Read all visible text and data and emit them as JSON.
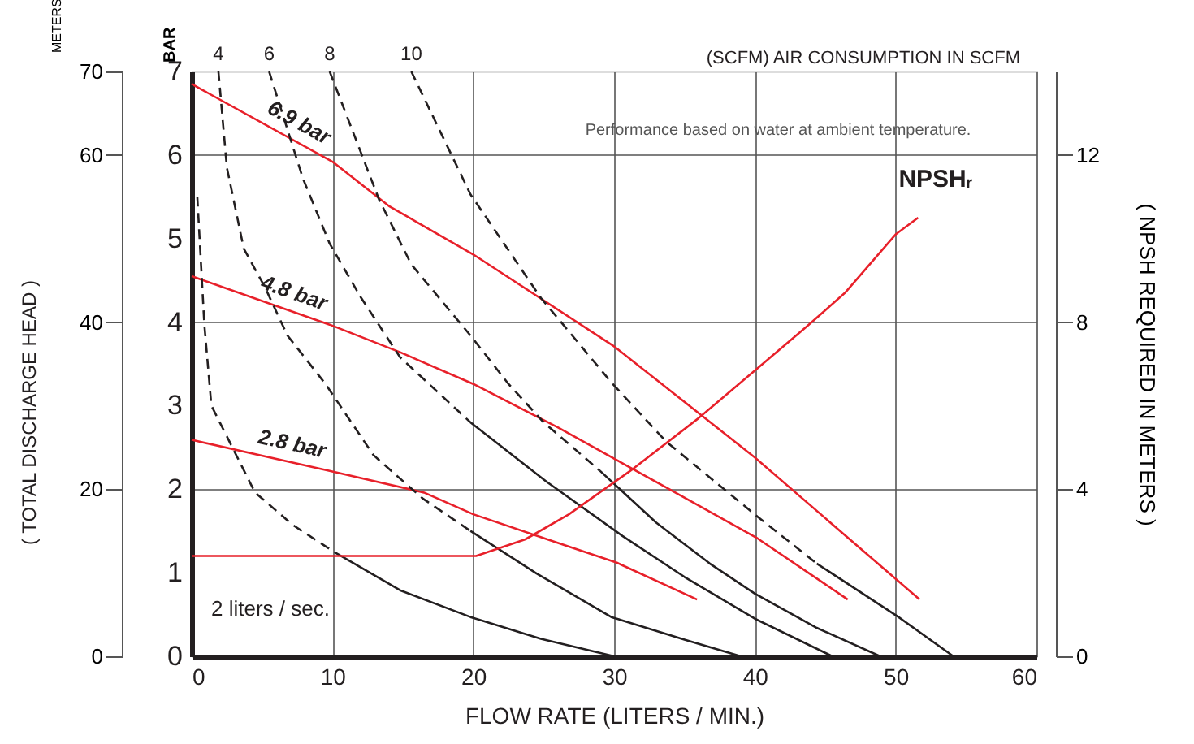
{
  "chart_data": {
    "type": "line",
    "xlabel": "FLOW RATE (LITERS / MIN.)",
    "ylabel": "BAR",
    "y2label": "( NPSH REQUIRED IN METERS )",
    "y3label": "METERS",
    "xlim": [
      0,
      60
    ],
    "xticks": [
      0,
      10,
      20,
      30,
      40,
      50,
      60
    ],
    "ylim": [
      0,
      7
    ],
    "yticks": [
      0,
      1,
      2,
      3,
      4,
      5,
      6,
      7
    ],
    "y2lim": [
      0,
      14
    ],
    "y2ticks": [
      0,
      4,
      8,
      12
    ],
    "y3lim": [
      0,
      70
    ],
    "y3ticks": [
      0,
      20,
      40,
      60,
      70
    ],
    "grid": true,
    "marker": "none",
    "annotations": [
      "( TOTAL DISCHARGE HEAD )",
      "Performance based on water at ambient temperature.",
      "(SCFM) AIR CONSUMPTION IN SCFM",
      "2 liters / sec."
    ],
    "series": [
      {
        "name": "6.9 bar",
        "color": "#e8202a",
        "line_style": "solid",
        "x": [
          0,
          10,
          14,
          20,
          30,
          40,
          51.7
        ],
        "values": [
          6.85,
          5.92,
          5.39,
          4.81,
          3.71,
          2.38,
          0.68
        ]
      },
      {
        "name": "4.8 bar",
        "color": "#e8202a",
        "line_style": "solid",
        "x": [
          0,
          9.8,
          14.8,
          20,
          26,
          33.7,
          40.2,
          46.6
        ],
        "values": [
          4.55,
          3.97,
          3.64,
          3.26,
          2.74,
          2.02,
          1.41,
          0.68
        ]
      },
      {
        "name": "2.8 bar",
        "color": "#e8202a",
        "line_style": "solid",
        "x": [
          0,
          9.8,
          16.5,
          20,
          25.6,
          30.2,
          35.9
        ],
        "values": [
          2.59,
          2.22,
          1.96,
          1.7,
          1.38,
          1.12,
          0.68
        ]
      },
      {
        "name": "NPSHᵣ",
        "color": "#e8202a",
        "line_style": "solid",
        "axis": "y2",
        "x": [
          0,
          20.2,
          23.7,
          26.8,
          31.4,
          36,
          40.2,
          43.7,
          46.4,
          50,
          51.6
        ],
        "values": [
          2.4,
          2.4,
          2.8,
          3.4,
          4.5,
          5.7,
          6.9,
          7.9,
          8.7,
          10.1,
          10.5
        ]
      },
      {
        "color": "#231f20",
        "line_style": "dashed",
        "x": [
          0.4,
          0.9,
          1.4,
          4.5,
          7.2,
          10.2
        ],
        "values": [
          5.5,
          3.97,
          3.0,
          1.96,
          1.57,
          1.24
        ]
      },
      {
        "color": "#231f20",
        "line_style": "solid",
        "x": [
          10.2,
          14.8,
          19.8,
          24.8,
          30
        ],
        "values": [
          1.24,
          0.79,
          0.47,
          0.21,
          0
        ]
      },
      {
        "name": "4",
        "color": "#231f20",
        "line_style": "dashed",
        "x": [
          1.9,
          2.5,
          3.7,
          5.2,
          6.8,
          9.5,
          12.9,
          16.4,
          19.8
        ],
        "values": [
          7,
          5.85,
          4.88,
          4.42,
          3.84,
          3.26,
          2.41,
          1.89,
          1.5
        ]
      },
      {
        "color": "#231f20",
        "line_style": "solid",
        "x": [
          19.8,
          24.5,
          29.8,
          35,
          39
        ],
        "values": [
          1.5,
          0.99,
          0.47,
          0.2,
          0
        ]
      },
      {
        "name": "6",
        "color": "#231f20",
        "line_style": "dashed",
        "x": [
          5.5,
          7.9,
          9.8,
          12,
          14.8,
          19.8
        ],
        "values": [
          7,
          5.72,
          4.94,
          4.3,
          3.58,
          2.8
        ]
      },
      {
        "color": "#231f20",
        "line_style": "solid",
        "x": [
          19.8,
          25.2,
          30.6,
          35,
          40,
          45.5
        ],
        "values": [
          2.8,
          2.09,
          1.44,
          0.95,
          0.45,
          0
        ]
      },
      {
        "name": "8",
        "color": "#231f20",
        "line_style": "dashed",
        "x": [
          9.8,
          13.3,
          15.6,
          19.8,
          22.5,
          25,
          29
        ],
        "values": [
          7,
          5.47,
          4.69,
          3.84,
          3.26,
          2.8,
          2.22
        ]
      },
      {
        "color": "#231f20",
        "line_style": "solid",
        "x": [
          29,
          33,
          36.8,
          40,
          44.4,
          48.9
        ],
        "values": [
          2.22,
          1.6,
          1.11,
          0.75,
          0.34,
          0
        ]
      },
      {
        "name": "10",
        "color": "#231f20",
        "line_style": "dashed",
        "x": [
          15.6,
          19.8,
          24.8,
          29.9,
          33.7,
          40.2,
          44.4
        ],
        "values": [
          7,
          5.53,
          4.29,
          3.26,
          2.57,
          1.67,
          1.11
        ]
      },
      {
        "color": "#231f20",
        "line_style": "solid",
        "x": [
          44.4,
          50.2,
          54.1
        ],
        "values": [
          1.11,
          0.47,
          0
        ]
      }
    ]
  }
}
